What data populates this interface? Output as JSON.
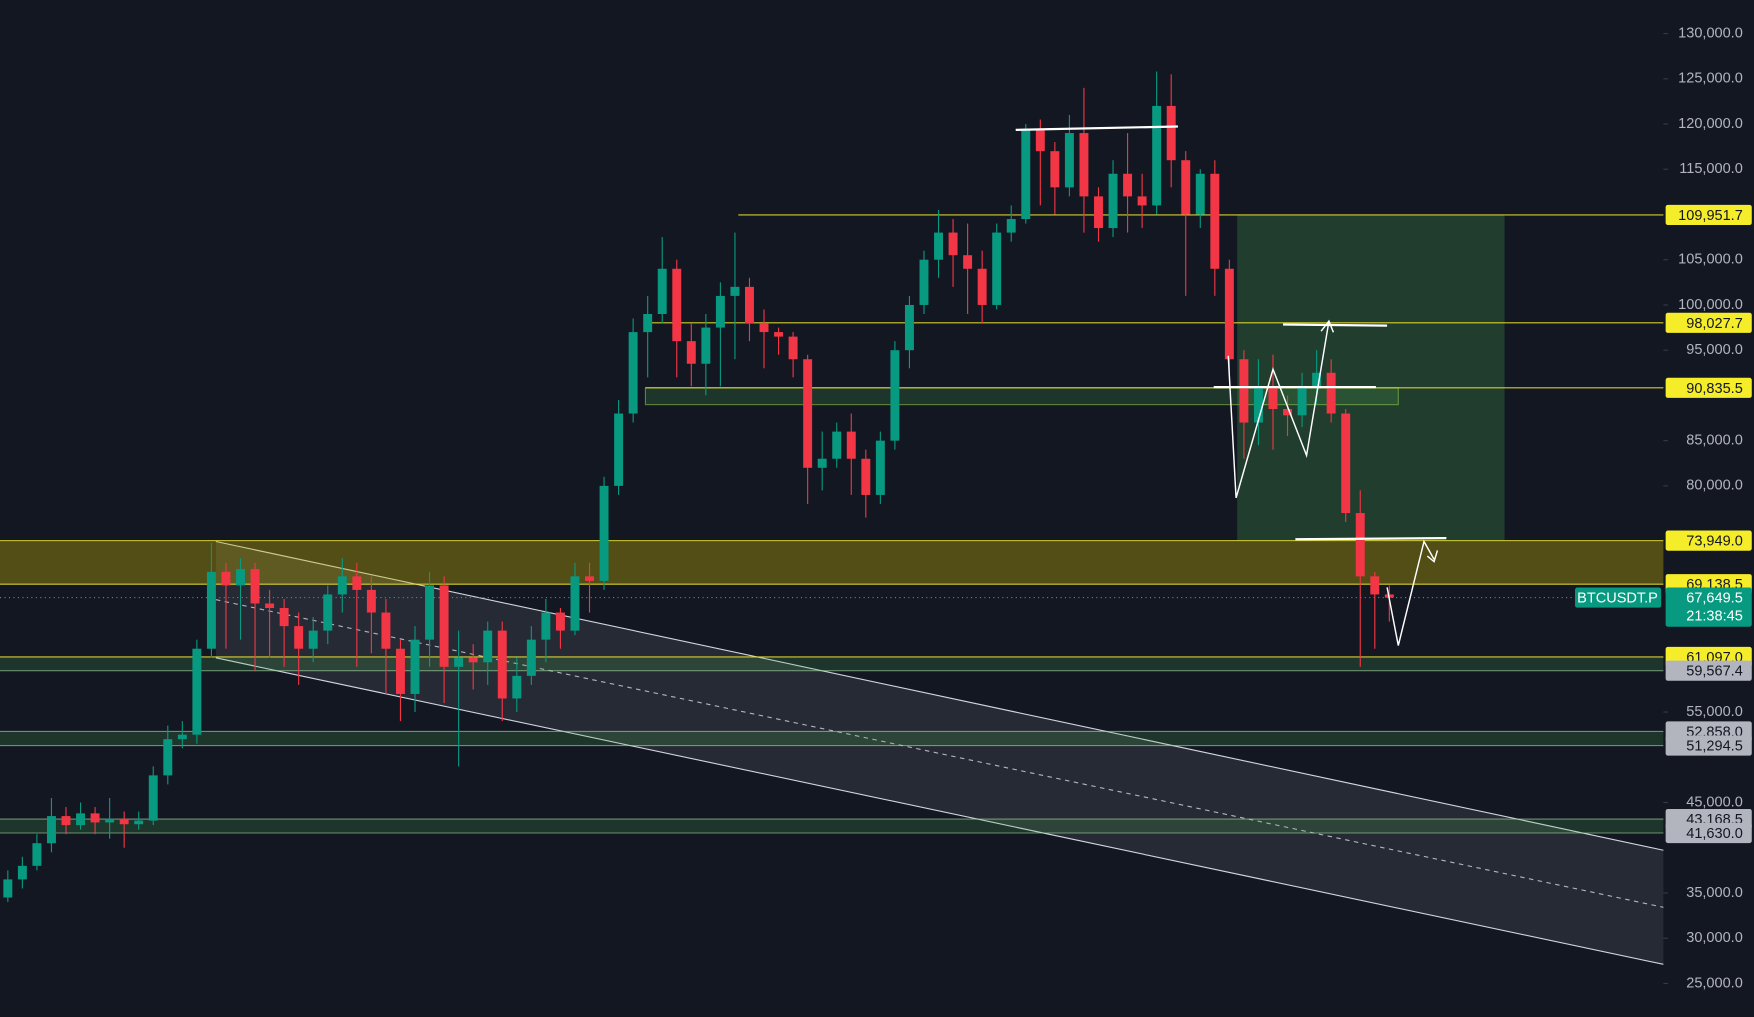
{
  "chart_data": {
    "type": "candlestick",
    "symbol": "BTCUSDT.P",
    "countdown": "21:38:45",
    "up_color": "#089981",
    "down_color": "#f23645",
    "ylim": [
      21300,
      133700
    ],
    "yticks": [
      {
        "value": 130000,
        "label": "130,000.0"
      },
      {
        "value": 125000,
        "label": "125,000.0"
      },
      {
        "value": 120000,
        "label": "120,000.0"
      },
      {
        "value": 115000,
        "label": "115,000.0"
      },
      {
        "value": 105000,
        "label": "105,000.0"
      },
      {
        "value": 100000,
        "label": "100,000.0"
      },
      {
        "value": 95000,
        "label": "95,000.0"
      },
      {
        "value": 85000,
        "label": "85,000.0"
      },
      {
        "value": 80000,
        "label": "80,000.0"
      },
      {
        "value": 55000,
        "label": "55,000.0"
      },
      {
        "value": 45000,
        "label": "45,000.0"
      },
      {
        "value": 35000,
        "label": "35,000.0"
      },
      {
        "value": 30000,
        "label": "30,000.0"
      },
      {
        "value": 25000,
        "label": "25,000.0"
      }
    ],
    "levels": [
      {
        "value": 109951.7,
        "label": "109,951.7",
        "color": "#f5ec2a"
      },
      {
        "value": 98027.7,
        "label": "98,027.7",
        "color": "#f5ec2a"
      },
      {
        "value": 90835.5,
        "label": "90,835.5",
        "color": "#f5ec2a"
      },
      {
        "value": 73949.0,
        "label": "73,949.0",
        "color": "#f5ec2a"
      },
      {
        "value": 69138.5,
        "label": "69,138.5",
        "color": "#f5ec2a"
      },
      {
        "value": 61097.0,
        "label": "61,097.0",
        "color": "#f5ec2a"
      },
      {
        "value": 59567.4,
        "label": "59,567.4",
        "color": "#b2b5be"
      },
      {
        "value": 52858.0,
        "label": "52,858.0",
        "color": "#b2b5be"
      },
      {
        "value": 51294.5,
        "label": "51,294.5",
        "color": "#b2b5be"
      },
      {
        "value": 43168.5,
        "label": "43,168.5",
        "color": "#b2b5be"
      },
      {
        "value": 41630.0,
        "label": "41,630.0",
        "color": "#b2b5be"
      }
    ],
    "last_price": {
      "value": 67649.5,
      "label": "67,649.5"
    },
    "open": [
      34500,
      36500,
      38000,
      40500,
      43500,
      42500,
      43800,
      42800,
      43200,
      42600,
      43000,
      48000,
      52000,
      52500,
      62000,
      70500,
      69000,
      70800,
      67000,
      66500,
      64500,
      62000,
      64000,
      68000,
      70000,
      68500,
      66000,
      62000,
      57000,
      63000,
      69000,
      60000,
      61000,
      60500,
      64000,
      56500,
      59000,
      63000,
      66000,
      64000,
      70000,
      69500,
      80000,
      88000,
      97000,
      99000,
      104000,
      96000,
      93500,
      97500,
      101000,
      102000,
      98000,
      97000,
      96500,
      94000,
      82000,
      83000,
      86000,
      83000,
      79000,
      85000,
      95000,
      100000,
      105000,
      108000,
      105500,
      104000,
      100000,
      108000,
      109500,
      119500,
      117000,
      113000,
      119000,
      112000,
      108500,
      114500,
      112000,
      111000,
      122000,
      116000,
      110000,
      114500,
      104000,
      94000,
      87000,
      91000,
      88500,
      87800,
      91000,
      92500,
      88000,
      77000,
      70000,
      68000
    ],
    "high": [
      37500,
      39000,
      41500,
      45500,
      44500,
      45000,
      44500,
      45500,
      44000,
      44000,
      49000,
      53500,
      54000,
      63000,
      73700,
      71500,
      72000,
      71500,
      68500,
      67500,
      66000,
      65500,
      69000,
      72000,
      71500,
      70000,
      67500,
      63000,
      64500,
      70500,
      70000,
      64000,
      62500,
      65000,
      65000,
      61000,
      64500,
      67500,
      66500,
      71500,
      71500,
      81000,
      89500,
      98500,
      101000,
      107500,
      105000,
      98000,
      99000,
      102500,
      108000,
      103000,
      99500,
      97500,
      97000,
      94500,
      86000,
      87000,
      88000,
      84000,
      86000,
      96000,
      101000,
      106000,
      110500,
      109500,
      109000,
      106000,
      109000,
      111000,
      120000,
      120500,
      118000,
      121000,
      124000,
      113000,
      116000,
      119000,
      114500,
      125800,
      125500,
      117000,
      115000,
      116000,
      105000,
      95000,
      94000,
      94500,
      90000,
      92500,
      95000,
      94000,
      88500,
      79500,
      70500,
      69000
    ],
    "low": [
      34000,
      35500,
      37500,
      39500,
      41500,
      42000,
      41500,
      41000,
      40000,
      42000,
      42500,
      47000,
      51000,
      51500,
      61000,
      62000,
      63000,
      59500,
      61000,
      60000,
      58000,
      60500,
      62500,
      66000,
      60000,
      61500,
      57000,
      54000,
      55000,
      60000,
      56000,
      49000,
      57500,
      58000,
      54000,
      55000,
      58000,
      60500,
      62000,
      63500,
      66000,
      68500,
      79000,
      87000,
      92000,
      98000,
      92000,
      91000,
      90000,
      91000,
      94000,
      96000,
      93000,
      94500,
      92000,
      78000,
      79500,
      82000,
      79000,
      76500,
      78000,
      84000,
      93000,
      99000,
      103000,
      102000,
      99000,
      98000,
      99500,
      107000,
      109000,
      111000,
      110000,
      112000,
      108000,
      107000,
      107500,
      108000,
      108500,
      110000,
      113000,
      101000,
      108500,
      101000,
      92000,
      83000,
      84500,
      84000,
      85500,
      86500,
      89000,
      87000,
      76000,
      60000,
      62000,
      65000
    ],
    "close": [
      36500,
      38000,
      40500,
      43500,
      42500,
      43800,
      42800,
      43200,
      42600,
      43000,
      48000,
      52000,
      52500,
      62000,
      70500,
      69000,
      70800,
      67000,
      66500,
      64500,
      62000,
      64000,
      68000,
      70000,
      68500,
      66000,
      62000,
      57000,
      63000,
      69000,
      60000,
      61000,
      60500,
      64000,
      56500,
      59000,
      63000,
      66000,
      64000,
      70000,
      69500,
      80000,
      88000,
      97000,
      99000,
      104000,
      96000,
      93500,
      97500,
      101000,
      102000,
      98000,
      97000,
      96500,
      94000,
      82000,
      83000,
      86000,
      83000,
      79000,
      85000,
      95000,
      100000,
      105000,
      108000,
      105500,
      104000,
      100000,
      108000,
      109500,
      119500,
      117000,
      113000,
      119000,
      112000,
      108500,
      114500,
      112000,
      111000,
      122000,
      116000,
      110000,
      114500,
      104000,
      94000,
      87000,
      91000,
      88500,
      87800,
      91000,
      92500,
      88000,
      77000,
      70000,
      68000,
      67649.5
    ]
  }
}
